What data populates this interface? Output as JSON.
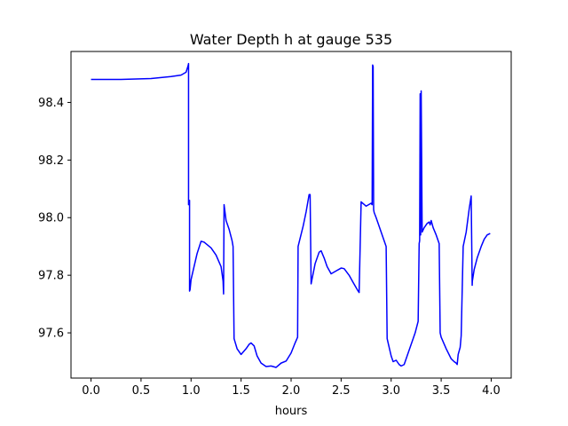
{
  "chart_data": {
    "type": "line",
    "title": "Water Depth h at gauge 535",
    "xlabel": "hours",
    "ylabel": "",
    "xlim": [
      -0.2,
      4.2
    ],
    "ylim": [
      97.443,
      98.577
    ],
    "xticks": [
      0.0,
      0.5,
      1.0,
      1.5,
      2.0,
      2.5,
      3.0,
      3.5,
      4.0
    ],
    "xtick_labels": [
      "0.0",
      "0.5",
      "1.0",
      "1.5",
      "2.0",
      "2.5",
      "3.0",
      "3.5",
      "4.0"
    ],
    "yticks": [
      97.6,
      97.8,
      98.0,
      98.2,
      98.4
    ],
    "ytick_labels": [
      "97.6",
      "97.8",
      "98.0",
      "98.2",
      "98.4"
    ],
    "grid": false,
    "legend": "none",
    "series": [
      {
        "color": "#0000ff",
        "x": [
          0.0,
          0.3,
          0.6,
          0.8,
          0.9,
          0.95,
          0.97,
          0.975,
          0.975,
          0.985,
          0.985,
          0.99,
          1.0,
          1.03,
          1.06,
          1.1,
          1.13,
          1.2,
          1.25,
          1.3,
          1.32,
          1.325,
          1.33,
          1.35,
          1.38,
          1.41,
          1.42,
          1.43,
          1.46,
          1.5,
          1.55,
          1.58,
          1.6,
          1.63,
          1.66,
          1.7,
          1.75,
          1.8,
          1.85,
          1.9,
          1.95,
          2.0,
          2.04,
          2.065,
          2.07,
          2.12,
          2.15,
          2.18,
          2.19,
          2.2,
          2.24,
          2.28,
          2.3,
          2.33,
          2.36,
          2.4,
          2.45,
          2.5,
          2.53,
          2.58,
          2.62,
          2.67,
          2.68,
          2.7,
          2.75,
          2.8,
          2.81,
          2.815,
          2.82,
          2.825,
          2.83,
          2.85,
          2.9,
          2.95,
          2.96,
          2.98,
          3.0,
          3.02,
          3.05,
          3.08,
          3.1,
          3.13,
          3.16,
          3.2,
          3.24,
          3.27,
          3.28,
          3.285,
          3.29,
          3.295,
          3.3,
          3.31,
          3.33,
          3.36,
          3.38,
          3.39,
          3.4,
          3.42,
          3.45,
          3.48,
          3.49,
          3.5,
          3.55,
          3.6,
          3.63,
          3.65,
          3.66,
          3.67,
          3.69,
          3.7,
          3.72,
          3.75,
          3.78,
          3.8,
          3.81,
          3.812,
          3.83,
          3.86,
          3.9,
          3.93,
          3.96,
          3.99
        ],
        "y": [
          98.48,
          98.48,
          98.483,
          98.49,
          98.495,
          98.505,
          98.527,
          98.535,
          98.045,
          98.06,
          97.745,
          97.75,
          97.785,
          97.83,
          97.875,
          97.918,
          97.915,
          97.895,
          97.87,
          97.83,
          97.78,
          97.735,
          98.045,
          97.99,
          97.96,
          97.92,
          97.9,
          97.58,
          97.545,
          97.525,
          97.545,
          97.56,
          97.565,
          97.555,
          97.52,
          97.495,
          97.483,
          97.485,
          97.48,
          97.495,
          97.502,
          97.53,
          97.565,
          97.585,
          97.9,
          97.97,
          98.02,
          98.08,
          98.08,
          97.77,
          97.84,
          97.88,
          97.885,
          97.86,
          97.83,
          97.805,
          97.815,
          97.825,
          97.823,
          97.8,
          97.775,
          97.745,
          97.74,
          98.055,
          98.04,
          98.05,
          98.045,
          98.53,
          98.525,
          98.028,
          98.018,
          98.0,
          97.95,
          97.9,
          97.58,
          97.55,
          97.52,
          97.5,
          97.505,
          97.49,
          97.485,
          97.49,
          97.52,
          97.56,
          97.6,
          97.64,
          97.91,
          97.92,
          98.43,
          97.94,
          98.44,
          97.95,
          97.965,
          97.98,
          97.985,
          97.975,
          97.99,
          97.965,
          97.94,
          97.91,
          97.6,
          97.585,
          97.545,
          97.51,
          97.5,
          97.495,
          97.49,
          97.525,
          97.55,
          97.59,
          97.9,
          97.95,
          98.03,
          98.075,
          97.765,
          97.78,
          97.82,
          97.86,
          97.9,
          97.925,
          97.94,
          97.945
        ]
      }
    ]
  }
}
